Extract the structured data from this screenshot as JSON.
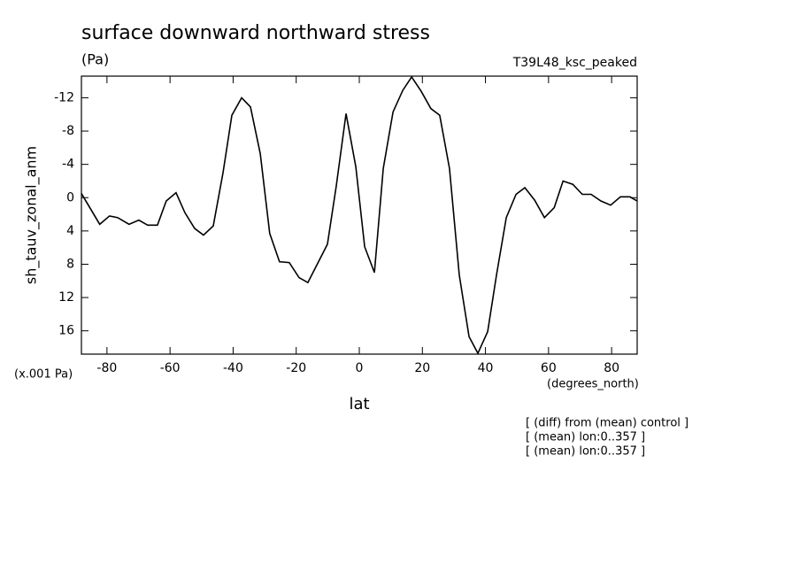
{
  "chart_data": {
    "type": "line",
    "title": "surface downward northward stress",
    "subtitle": "(Pa)",
    "run_label": "T39L48_ksc_peaked",
    "y_label": "sh_tauv_zonal_anm",
    "y_unit": "(x.001 Pa)",
    "x_unit": "(degrees_north)",
    "x_label": "lat",
    "notes": [
      "[ (diff) from (mean) control ]",
      "[ (mean) lon:0..357 ]",
      "[ (mean) lon:0..357 ]"
    ],
    "x": [
      -88.1,
      -82.3,
      -79.2,
      -76.6,
      -73.0,
      -69.9,
      -67.1,
      -64.0,
      -61.2,
      -58.1,
      -55.3,
      -52.2,
      -49.4,
      -46.3,
      -43.2,
      -40.4,
      -37.3,
      -34.5,
      -31.4,
      -28.4,
      -25.3,
      -22.2,
      -19.1,
      -16.3,
      -13.2,
      -10.1,
      -7.3,
      -4.2,
      -1.1,
      1.7,
      4.8,
      7.6,
      10.7,
      13.8,
      16.6,
      19.6,
      22.7,
      25.5,
      28.6,
      31.7,
      34.8,
      37.6,
      40.7,
      43.5,
      46.6,
      49.7,
      52.5,
      55.6,
      58.7,
      61.8,
      64.6,
      67.7,
      70.7,
      73.5,
      76.6,
      79.7,
      82.8,
      85.8,
      88.1
    ],
    "series": [
      {
        "name": "sh_tauv_zonal_anm",
        "color": "#000000",
        "values": [
          -0.5,
          3.2,
          2.2,
          2.4,
          3.2,
          2.7,
          3.3,
          3.3,
          0.4,
          -0.6,
          1.8,
          3.7,
          4.5,
          3.4,
          -3.0,
          -9.9,
          -12.0,
          -10.9,
          -5.3,
          4.3,
          7.7,
          7.8,
          9.6,
          10.2,
          7.9,
          5.6,
          -1.4,
          -10.1,
          -3.7,
          5.9,
          9.0,
          -3.5,
          -10.3,
          -12.9,
          -14.5,
          -12.8,
          -10.7,
          -9.9,
          -3.5,
          9.3,
          16.7,
          18.7,
          16.1,
          9.3,
          2.4,
          -0.4,
          -1.2,
          0.3,
          2.4,
          1.2,
          -2.0,
          -1.6,
          -0.4,
          -0.4,
          0.4,
          0.9,
          -0.1,
          -0.1,
          0.4
        ]
      }
    ],
    "xlim": [
      -88.1,
      88.1
    ],
    "xticks": [
      -80,
      -60,
      -40,
      -20,
      0,
      20,
      40,
      60,
      80
    ],
    "ylim": [
      18.8,
      -14.6
    ],
    "yticks": [
      -12,
      -8,
      -4,
      0,
      4,
      8,
      12,
      16
    ]
  }
}
